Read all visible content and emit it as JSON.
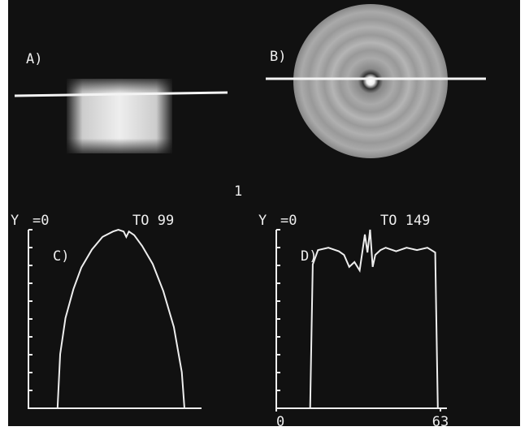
{
  "panels": {
    "a_label": "A)",
    "b_label": "B)",
    "figure_number": "1"
  },
  "chart_data": [
    {
      "type": "line",
      "label": "C)",
      "y_axis_label": "Y",
      "y_from": "=0",
      "y_to": "TO 99",
      "xlim": [
        0,
        63
      ],
      "ylim": [
        0,
        99
      ],
      "color": "#eeeeee",
      "x": [
        0,
        11,
        12,
        14,
        17,
        20,
        24,
        28,
        32,
        34,
        36,
        37,
        38,
        40,
        43,
        47,
        51,
        55,
        58,
        59,
        63
      ],
      "values": [
        0,
        0,
        30,
        50,
        66,
        78,
        88,
        95,
        98,
        99,
        98,
        95,
        98,
        96,
        90,
        80,
        65,
        45,
        20,
        0,
        0
      ]
    },
    {
      "type": "line",
      "label": "D)",
      "y_axis_label": "Y",
      "y_from": "=0",
      "y_to": "TO 149",
      "xlim": [
        0,
        63
      ],
      "ylim": [
        0,
        149
      ],
      "xticks": [
        0,
        63
      ],
      "color": "#eeeeee",
      "x": [
        0,
        13,
        14,
        16,
        20,
        24,
        26,
        28,
        30,
        32,
        33,
        34,
        35,
        36,
        37,
        38,
        40,
        42,
        46,
        50,
        54,
        58,
        61,
        62,
        63
      ],
      "values": [
        0,
        0,
        120,
        132,
        134,
        131,
        128,
        118,
        122,
        115,
        130,
        145,
        130,
        149,
        118,
        128,
        132,
        134,
        131,
        134,
        132,
        134,
        130,
        0,
        0
      ]
    }
  ]
}
